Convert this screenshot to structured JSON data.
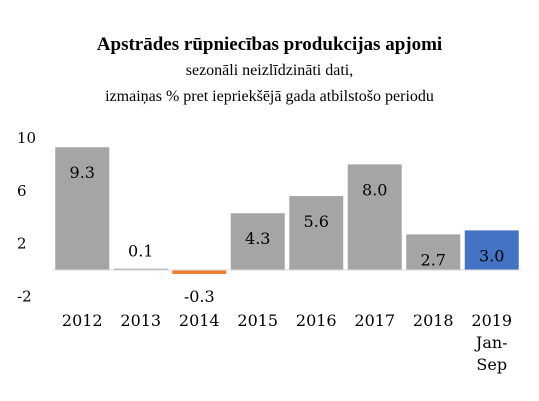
{
  "title": "Apstrādes rūpniecības produkcijas apjomi",
  "subtitle_line1": "sezonāli neizlīdzināti dati,",
  "subtitle_line2": "izmaiņas % pret iepriekšējā gada atbilstošo periodu",
  "colors": {
    "default": "#a5a5a5",
    "negative": "#ed7d31",
    "highlight": "#4472c4",
    "axis": "#d9d9d9"
  },
  "chart_data": {
    "type": "bar",
    "title": "Apstrādes rūpniecības produkcijas apjomi",
    "categories": [
      [
        "2012"
      ],
      [
        "2013"
      ],
      [
        "2014"
      ],
      [
        "2015"
      ],
      [
        "2016"
      ],
      [
        "2017"
      ],
      [
        "2018"
      ],
      [
        "2019",
        "Jan-",
        "Sep"
      ]
    ],
    "values": [
      9.3,
      0.1,
      -0.3,
      4.3,
      5.6,
      8.0,
      2.7,
      3.0
    ],
    "data_labels": [
      "9.3",
      "0.1",
      "-0.3",
      "4.3",
      "5.6",
      "8.0",
      "2.7",
      "3.0"
    ],
    "y_ticks": [
      "10",
      "6",
      "2",
      "-2"
    ],
    "y_tick_values": [
      10,
      6,
      2,
      -2
    ],
    "ylim": [
      -2,
      10
    ],
    "grid": false,
    "legend": "none",
    "xlabel": "",
    "ylabel": ""
  }
}
